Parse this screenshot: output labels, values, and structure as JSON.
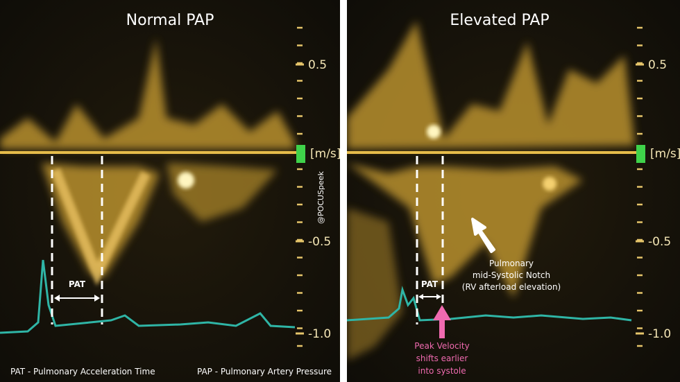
{
  "panels": [
    {
      "title": "Normal PAP",
      "scale": {
        "ticks": [
          "0.5",
          "-0.5",
          "-1.0"
        ],
        "unit": "[m/s]"
      },
      "pat_label": "PAT"
    },
    {
      "title": "Elevated PAP",
      "scale": {
        "ticks": [
          "0.5",
          "-0.5",
          "-1.0"
        ],
        "unit": "[m/s]"
      },
      "pat_label": "PAT",
      "notch_annotation": [
        "Pulmonary",
        "mid-Systolic Notch",
        "(RV afterload elevation)"
      ],
      "peak_annotation": [
        "Peak Velocity",
        "shifts earlier",
        "into systole"
      ]
    }
  ],
  "watermark": "@POCUSpeek",
  "footer": {
    "left": "PAT - Pulmonary Acceleration Time",
    "right": "PAP - Pulmonary Artery Pressure"
  }
}
